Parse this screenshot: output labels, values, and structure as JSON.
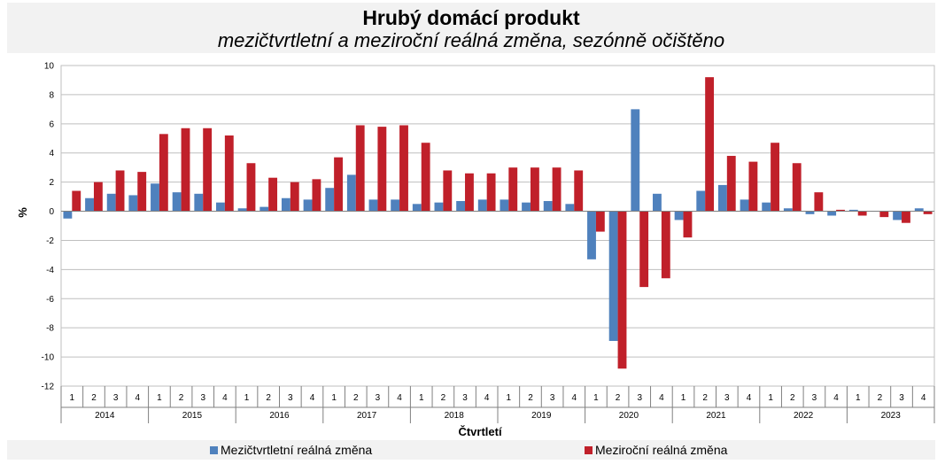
{
  "chart_data": {
    "type": "bar",
    "title": "Hrubý domácí produkt",
    "subtitle": "mezičtvrtletní a meziroční reálná změna, sezónně očištěno",
    "xlabel": "Čtvrtletí",
    "ylabel": "%",
    "ylim": [
      -12,
      10
    ],
    "yticks": [
      10,
      8,
      6,
      4,
      2,
      0,
      -2,
      -4,
      -6,
      -8,
      -10,
      -12
    ],
    "grid": true,
    "legend_position": "bottom",
    "years": [
      "2014",
      "2015",
      "2016",
      "2017",
      "2018",
      "2019",
      "2020",
      "2021",
      "2022",
      "2023"
    ],
    "quarters": [
      "1",
      "2",
      "3",
      "4"
    ],
    "series": [
      {
        "name": "Mezičtvrtletní reálná změna",
        "color": "#4f81bd",
        "values": [
          -0.5,
          0.9,
          1.2,
          1.1,
          1.9,
          1.3,
          1.2,
          0.6,
          0.2,
          0.3,
          0.9,
          0.8,
          1.6,
          2.5,
          0.8,
          0.8,
          0.5,
          0.6,
          0.7,
          0.8,
          0.8,
          0.6,
          0.7,
          0.5,
          -3.3,
          -8.9,
          7.0,
          1.2,
          -0.6,
          1.4,
          1.8,
          0.8,
          0.6,
          0.2,
          -0.2,
          -0.3,
          0.1,
          0.0,
          -0.6,
          0.2
        ]
      },
      {
        "name": "Meziroční reálná změna",
        "color": "#c0202a",
        "values": [
          1.4,
          2.0,
          2.8,
          2.7,
          5.3,
          5.7,
          5.7,
          5.2,
          3.3,
          2.3,
          2.0,
          2.2,
          3.7,
          5.9,
          5.8,
          5.9,
          4.7,
          2.8,
          2.6,
          2.6,
          3.0,
          3.0,
          3.0,
          2.8,
          -1.4,
          -10.8,
          -5.2,
          -4.6,
          -1.8,
          9.2,
          3.8,
          3.4,
          4.7,
          3.3,
          1.3,
          0.1,
          -0.3,
          -0.4,
          -0.8,
          -0.2
        ]
      }
    ]
  }
}
